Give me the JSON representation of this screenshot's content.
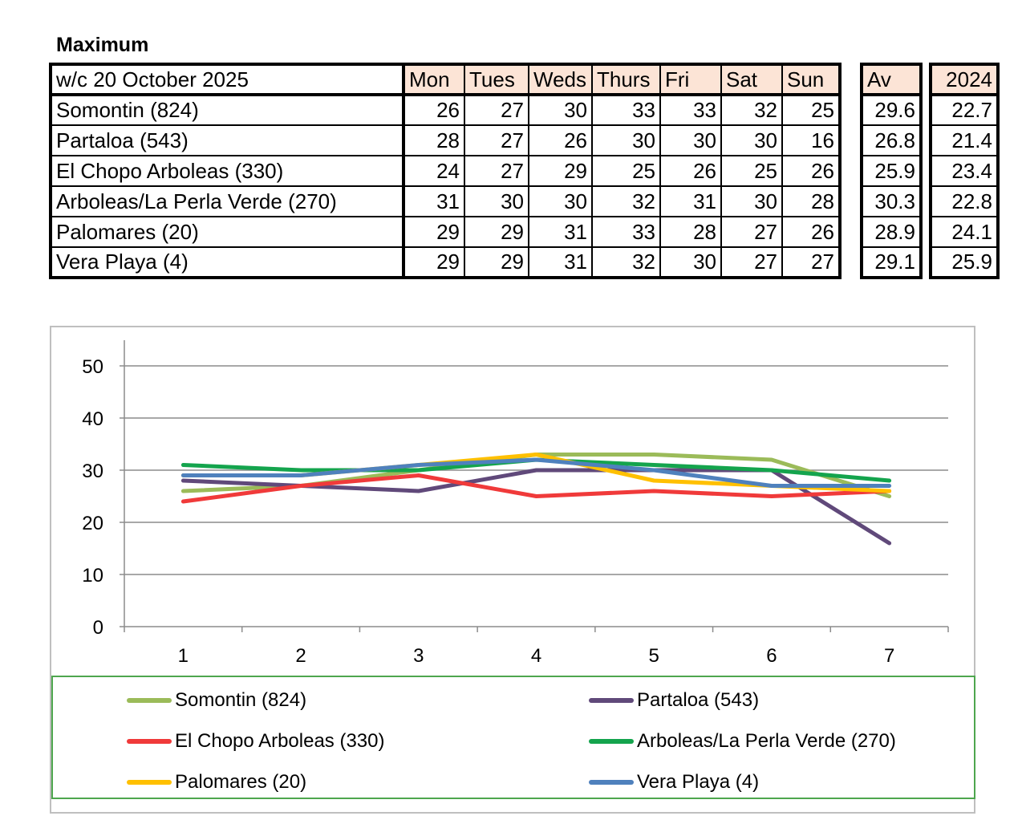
{
  "heading": "Maximum",
  "table": {
    "corner_label": "w/c 20 October  2025",
    "days": [
      "Mon",
      "Tues",
      "Weds",
      "Thurs",
      "Fri",
      "Sat",
      "Sun"
    ],
    "av_label": "Av",
    "year_label": "2024",
    "rows": [
      {
        "name": "Somontin (824)",
        "values": [
          "26",
          "27",
          "30",
          "33",
          "33",
          "32",
          "25"
        ],
        "av": "29.6",
        "prev": "22.7"
      },
      {
        "name": "Partaloa (543)",
        "values": [
          "28",
          "27",
          "26",
          "30",
          "30",
          "30",
          "16"
        ],
        "av": "26.8",
        "prev": "21.4"
      },
      {
        "name": "El Chopo  Arboleas (330)",
        "values": [
          "24",
          "27",
          "29",
          "25",
          "26",
          "25",
          "26"
        ],
        "av": "25.9",
        "prev": "23.4"
      },
      {
        "name": "Arboleas/La Perla Verde (270)",
        "values": [
          "31",
          "30",
          "30",
          "32",
          "31",
          "30",
          "28"
        ],
        "av": "30.3",
        "prev": "22.8"
      },
      {
        "name": "Palomares (20)",
        "values": [
          "29",
          "29",
          "31",
          "33",
          "28",
          "27",
          "26"
        ],
        "av": "28.9",
        "prev": "24.1"
      },
      {
        "name": "Vera Playa (4)",
        "values": [
          "29",
          "29",
          "31",
          "32",
          "30",
          "27",
          "27"
        ],
        "av": "29.1",
        "prev": "25.9"
      }
    ]
  },
  "chart_data": {
    "type": "line",
    "x": [
      1,
      2,
      3,
      4,
      5,
      6,
      7
    ],
    "x_ticks": [
      "1",
      "2",
      "3",
      "4",
      "5",
      "6",
      "7"
    ],
    "y_ticks": [
      "0",
      "10",
      "20",
      "30",
      "40",
      "50"
    ],
    "ylim": [
      0,
      50
    ],
    "grid": true,
    "legend_position": "bottom",
    "series": [
      {
        "name": "Somontin (824)",
        "color": "#9bbb59",
        "values": [
          26,
          27,
          30,
          33,
          33,
          32,
          25
        ]
      },
      {
        "name": "Partaloa (543)",
        "color": "#60497a",
        "values": [
          28,
          27,
          26,
          30,
          30,
          30,
          16
        ]
      },
      {
        "name": "El Chopo  Arboleas (330)",
        "color": "#f03a3a",
        "values": [
          24,
          27,
          29,
          25,
          26,
          25,
          26
        ]
      },
      {
        "name": "Arboleas/La Perla Verde (270)",
        "color": "#14a44d",
        "values": [
          31,
          30,
          30,
          32,
          31,
          30,
          28
        ]
      },
      {
        "name": "Palomares (20)",
        "color": "#ffc000",
        "values": [
          29,
          29,
          31,
          33,
          28,
          27,
          26
        ]
      },
      {
        "name": "Vera Playa (4)",
        "color": "#4f81bd",
        "values": [
          29,
          29,
          31,
          32,
          30,
          27,
          27
        ]
      }
    ]
  }
}
